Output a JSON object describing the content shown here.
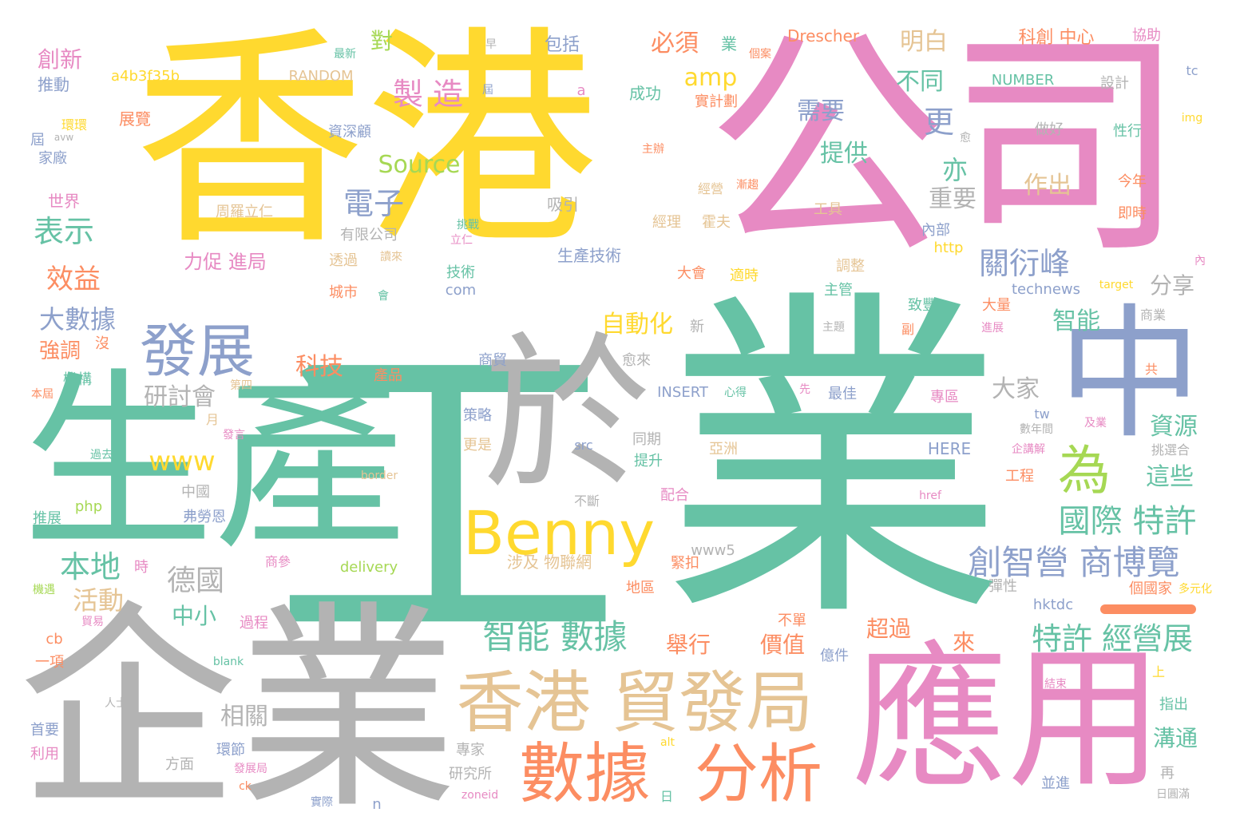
{
  "palette": {
    "green": "#66c2a5",
    "yellow": "#ffd92f",
    "pink": "#e78ac3",
    "gray": "#b3b3b3",
    "blue": "#8da0cb",
    "orange": "#fc8d62",
    "tan": "#e5c494",
    "lime": "#a6d854"
  },
  "words": {
    "w001": "業",
    "w002": "工",
    "w003": "香港",
    "w004": "公司",
    "w005": "企業",
    "w006": "生產",
    "w007": "應用",
    "w008": "於",
    "w009": "中",
    "w010": "香港 貿發局",
    "w011": "數據",
    "w012": "分析",
    "w013": "Benny",
    "w014": "發展",
    "w015": "為",
    "w016": "創智營 商博覽",
    "w017": "智能 數據",
    "w018": "特許 經營展",
    "w019": "國際 特許",
    "w020": "關衍峰",
    "w021": "製 造",
    "w022": "電子",
    "w023": "表示",
    "w024": "本地",
    "w025": "德國",
    "w026": "效益",
    "w027": "大數據",
    "w028": "研討會",
    "w029": "www",
    "w030": "活動",
    "w031": "中小",
    "w032": "相關",
    "w033": "自動化",
    "w034": "科技",
    "w035": "智能",
    "w036": "大家",
    "w037": "資源",
    "w038": "這些",
    "w039": "重要",
    "w040": "作出",
    "w041": "提供",
    "w042": "需要",
    "w043": "更",
    "w044": "不同",
    "w045": "明白",
    "w046": "必須",
    "w047": "amp",
    "w048": "Source",
    "w049": "創新",
    "w050": "強調",
    "w051": "分享",
    "w052": "舉行",
    "w053": "價值",
    "w054": "超過",
    "w055": "來",
    "w056": "溝通",
    "w057": "力促 進局",
    "w058": "科創 中心",
    "w059": "亦",
    "w060": "對",
    "w061": "Drescher",
    "w062": "a4b3f35b",
    "w063": "RANDOM",
    "w064": "NUMBER",
    "w065": "包括",
    "w066": "成功",
    "w067": "推動",
    "w068": "世界",
    "w069": "展覽",
    "w070": "資深顧",
    "w071": "吸引",
    "w072": "周羅立仁",
    "w073": "生產技術",
    "w074": "有限公司",
    "w075": "城市",
    "w076": "技術",
    "w077": "com",
    "w078": "INSERT",
    "w079": "HERE",
    "w080": "策略",
    "w081": "更是",
    "w082": "同期",
    "w083": "提升",
    "w084": "亞洲",
    "w085": "配合",
    "w086": "涉及 物聯網",
    "w087": "delivery",
    "w088": "緊扣",
    "w089": "地區",
    "w090": "中國",
    "w091": "弗勞恩",
    "w092": "php",
    "w093": "推展",
    "w094": "過去",
    "w095": "機構",
    "w096": "產品",
    "w097": "商貿",
    "w098": "愈來",
    "w099": "大會",
    "w100": "適時",
    "w101": "主管",
    "w102": "致豐",
    "w103": "technews",
    "w104": "http",
    "w105": "內部",
    "w106": "工具",
    "w107": "經理",
    "w108": "霍夫",
    "w109": "今年",
    "w110": "即時",
    "w111": "性行",
    "w112": "做好",
    "w113": "設計",
    "w114": "實計劃",
    "w115": "協助",
    "w116": "最新",
    "w117": "環環",
    "w118": "家廠",
    "w119": "最佳",
    "w120": "專區",
    "w121": "工程",
    "w122": "hktdc",
    "w123": "個國家",
    "w124": "多元化",
    "w125": "彈性",
    "w126": "億件",
    "w127": "不單",
    "w128": "過程",
    "w129": "商參",
    "w130": "時",
    "w131": "機遇",
    "w132": "貿易",
    "w133": "cb",
    "w134": "一項",
    "w135": "blank",
    "w136": "首要",
    "w137": "利用",
    "w138": "人士",
    "w139": "方面",
    "w140": "環節",
    "w141": "發展局",
    "w142": "專家",
    "w143": "研究所",
    "w144": "zoneid",
    "w145": "實際",
    "w146": "n",
    "w147": "日",
    "w148": "並進",
    "w149": "日圓滿",
    "w150": "再",
    "w151": "指出",
    "w152": "上",
    "w153": "結束",
    "w154": "alt",
    "w155": "href",
    "w156": "src",
    "w157": "border",
    "w158": "不斷",
    "w159": "www5",
    "w160": "tw",
    "w161": "心得",
    "w162": "先",
    "w163": "企講解",
    "w164": "數年間",
    "w165": "挑選合",
    "w166": "及業",
    "w167": "共",
    "w168": "大量",
    "w169": "進展",
    "w170": "商業",
    "w171": "副",
    "w172": "主題",
    "w173": "新",
    "w174": "沒",
    "w175": "本屆",
    "w176": "第四",
    "w177": "月",
    "w178": "發言",
    "w179": "屆",
    "w180": "avw",
    "w181": "早",
    "w182": "業",
    "w183": "個案",
    "w184": "a",
    "w185": "愈",
    "w186": "主辦",
    "w187": "經營",
    "w188": "漸趨",
    "w189": "挑戰",
    "w190": "立仁",
    "w191": "透過",
    "w192": "讀來",
    "w193": "會",
    "w194": "調整",
    "w195": "target",
    "w196": "內",
    "w197": "tc",
    "w198": "img",
    "w199": "ck",
    "w200": "屆"
  }
}
